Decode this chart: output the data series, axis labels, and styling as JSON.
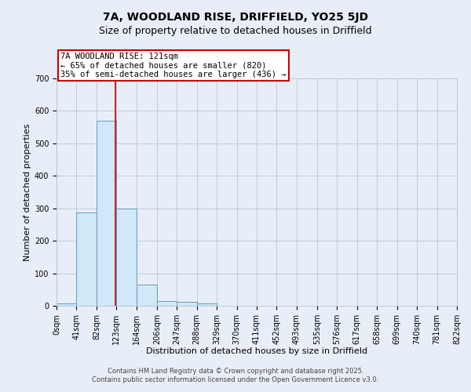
{
  "title1": "7A, WOODLAND RISE, DRIFFIELD, YO25 5JD",
  "title2": "Size of property relative to detached houses in Driffield",
  "xlabel": "Distribution of detached houses by size in Driffield",
  "ylabel": "Number of detached properties",
  "bin_edges": [
    0,
    41,
    82,
    123,
    164,
    206,
    247,
    288,
    329,
    370,
    411,
    452,
    493,
    535,
    576,
    617,
    658,
    699,
    740,
    781,
    822
  ],
  "bar_heights": [
    7,
    288,
    570,
    300,
    65,
    15,
    12,
    8,
    0,
    0,
    0,
    0,
    0,
    0,
    0,
    0,
    0,
    0,
    0,
    0
  ],
  "bar_color": "#d0e8f8",
  "bar_edge_color": "#6699bb",
  "property_line_x": 121,
  "property_line_color": "#cc0000",
  "annotation_text": "7A WOODLAND RISE: 121sqm\n← 65% of detached houses are smaller (820)\n35% of semi-detached houses are larger (436) →",
  "annotation_box_facecolor": "#ffffff",
  "annotation_box_edgecolor": "#cc0000",
  "ylim": [
    0,
    700
  ],
  "yticks": [
    0,
    100,
    200,
    300,
    400,
    500,
    600,
    700
  ],
  "footer1": "Contains HM Land Registry data © Crown copyright and database right 2025.",
  "footer2": "Contains public sector information licensed under the Open Government Licence v3.0.",
  "background_color": "#e8eef8",
  "plot_bg_color": "#e8eef8",
  "grid_color": "#b8c8d8",
  "title1_fontsize": 10,
  "title2_fontsize": 9,
  "xlabel_fontsize": 8,
  "ylabel_fontsize": 8,
  "tick_fontsize": 7,
  "footer_fontsize": 6,
  "annotation_fontsize": 7.5
}
